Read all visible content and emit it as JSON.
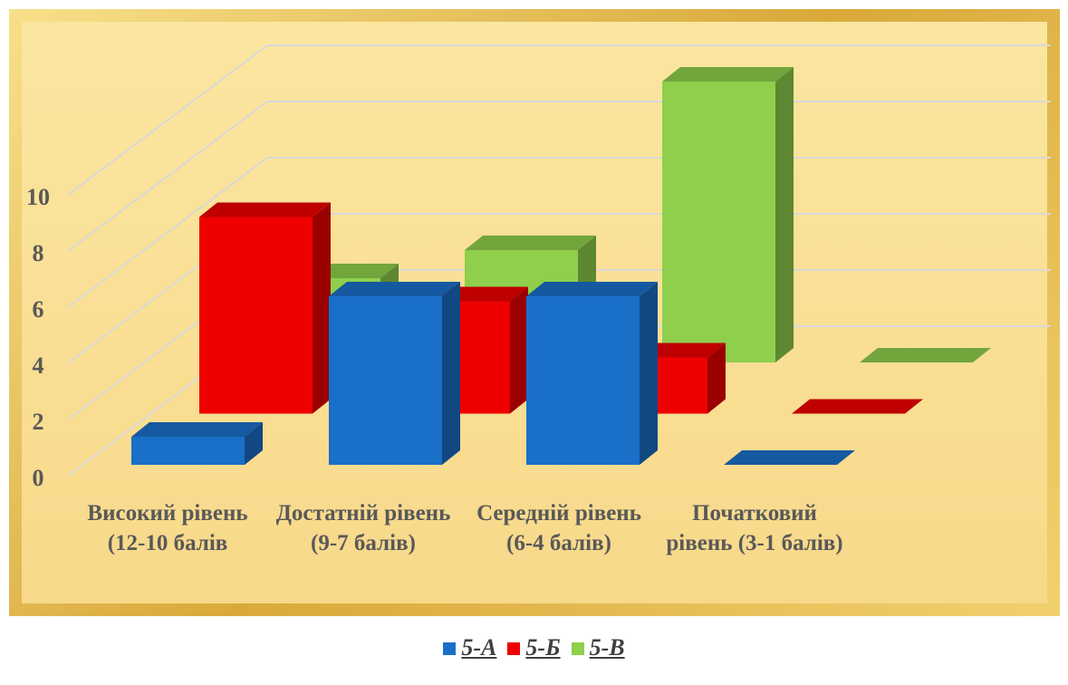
{
  "chart_data": {
    "type": "bar3d",
    "categories": [
      "Високий рівень (12-10 балів",
      "Достатній рівень (9-7 балів)",
      "Середній рівень (6-4 балів)",
      "Початковий рівень (3-1 балів)"
    ],
    "series": [
      {
        "name": "5-А",
        "color": "#1a6fc8",
        "values": [
          1,
          6,
          6,
          0
        ]
      },
      {
        "name": "5-Б",
        "color": "#ee0000",
        "values": [
          7,
          4,
          2,
          0
        ]
      },
      {
        "name": "5-В",
        "color": "#8fcf4c",
        "values": [
          3,
          4,
          10,
          0
        ]
      }
    ],
    "ylim": [
      0,
      14
    ],
    "yticks": [
      0,
      2,
      4,
      6,
      8,
      10
    ],
    "grid": true,
    "legend": "bottom"
  }
}
